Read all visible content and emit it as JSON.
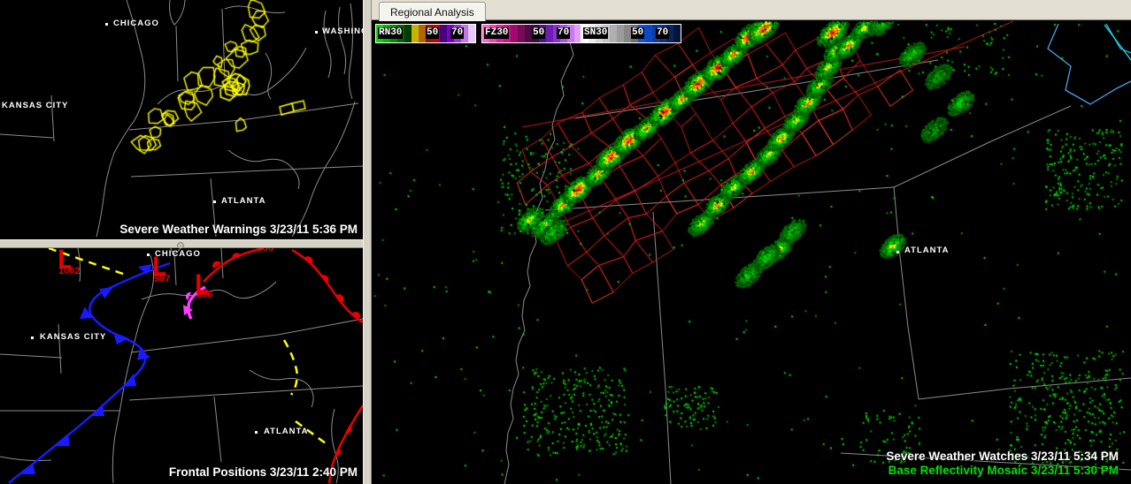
{
  "tab_label": "Regional Analysis",
  "panels": {
    "warnings": {
      "caption": "Severe Weather Warnings 3/23/11 5:36 PM",
      "cities": {
        "chicago": "CHICAGO",
        "washington": "WASHINGT",
        "kansas_city": "KANSAS CITY",
        "atlanta": "ATLANTA"
      }
    },
    "fronts": {
      "caption": "Frontal Positions 3/23/11 2:40 PM",
      "cities": {
        "chicago": "CHICAGO",
        "kansas_city": "KANSAS CITY",
        "atlanta": "ATLANTA"
      },
      "pressure_centers": [
        {
          "symbol": "L",
          "value": "1002"
        },
        {
          "symbol": "L",
          "value": "997"
        },
        {
          "symbol": "L",
          "value": "996"
        },
        {
          "symbol": "",
          "value": "996"
        }
      ]
    },
    "regional": {
      "captions": {
        "watches": "Severe Weather Watches 3/23/11 5:34 PM",
        "mosaic": "Base Reflectivity Mosaic 3/23/11 5:30 PM"
      },
      "cities": {
        "atlanta": "ATLANTA"
      },
      "legend": {
        "bars": [
          {
            "label": "RN30",
            "tick1": "50",
            "tick2": "70",
            "colors": [
              "#00dc00",
              "#00b400",
              "#008c00",
              "#006400",
              "#003c00",
              "#c8b400",
              "#b46400",
              "#961400",
              "#c80000",
              "#4b0082",
              "#7800c8",
              "#9632dc",
              "#be78ec",
              "#e6c8fa"
            ]
          },
          {
            "label": "FZ30",
            "tick1": "50",
            "tick2": "70",
            "colors": [
              "#ff64c8",
              "#ff3cb4",
              "#e61e9e",
              "#c81488",
              "#a00a6e",
              "#780a5a",
              "#500a46",
              "#3c0a3c",
              "#50148c",
              "#6e1eb4",
              "#8c32d2",
              "#aa50e6",
              "#c878f0",
              "#e0a0fa"
            ]
          },
          {
            "label": "SN30",
            "tick1": "50",
            "tick2": "70",
            "colors": [
              "#ffffff",
              "#ebebeb",
              "#d7d7d7",
              "#c3c3c3",
              "#afafaf",
              "#9b9b9b",
              "#878787",
              "#6e6e6e",
              "#1450dc",
              "#0f46c3",
              "#0a3ca5",
              "#0a3287",
              "#082460",
              "#081437"
            ]
          }
        ]
      }
    }
  },
  "colors": {
    "warning_yellow": "#ffff00",
    "watch_red": "#c81e1e",
    "watch_red_bright": "#ff4632",
    "cold_front_blue": "#1a1aff",
    "warm_front_red": "#e80000",
    "occluded_magenta": "#ff3cff",
    "trough_yellow": "#ffff00",
    "state_border_gray": "#8c8c8c",
    "caption_green": "#00e000",
    "radar_greens": [
      "#005000",
      "#007000",
      "#009000",
      "#00a800",
      "#00c800",
      "#00e000"
    ],
    "radar_yellow": "#ffff00",
    "radar_orange": "#ff8c00",
    "radar_red": "#ff0000"
  }
}
